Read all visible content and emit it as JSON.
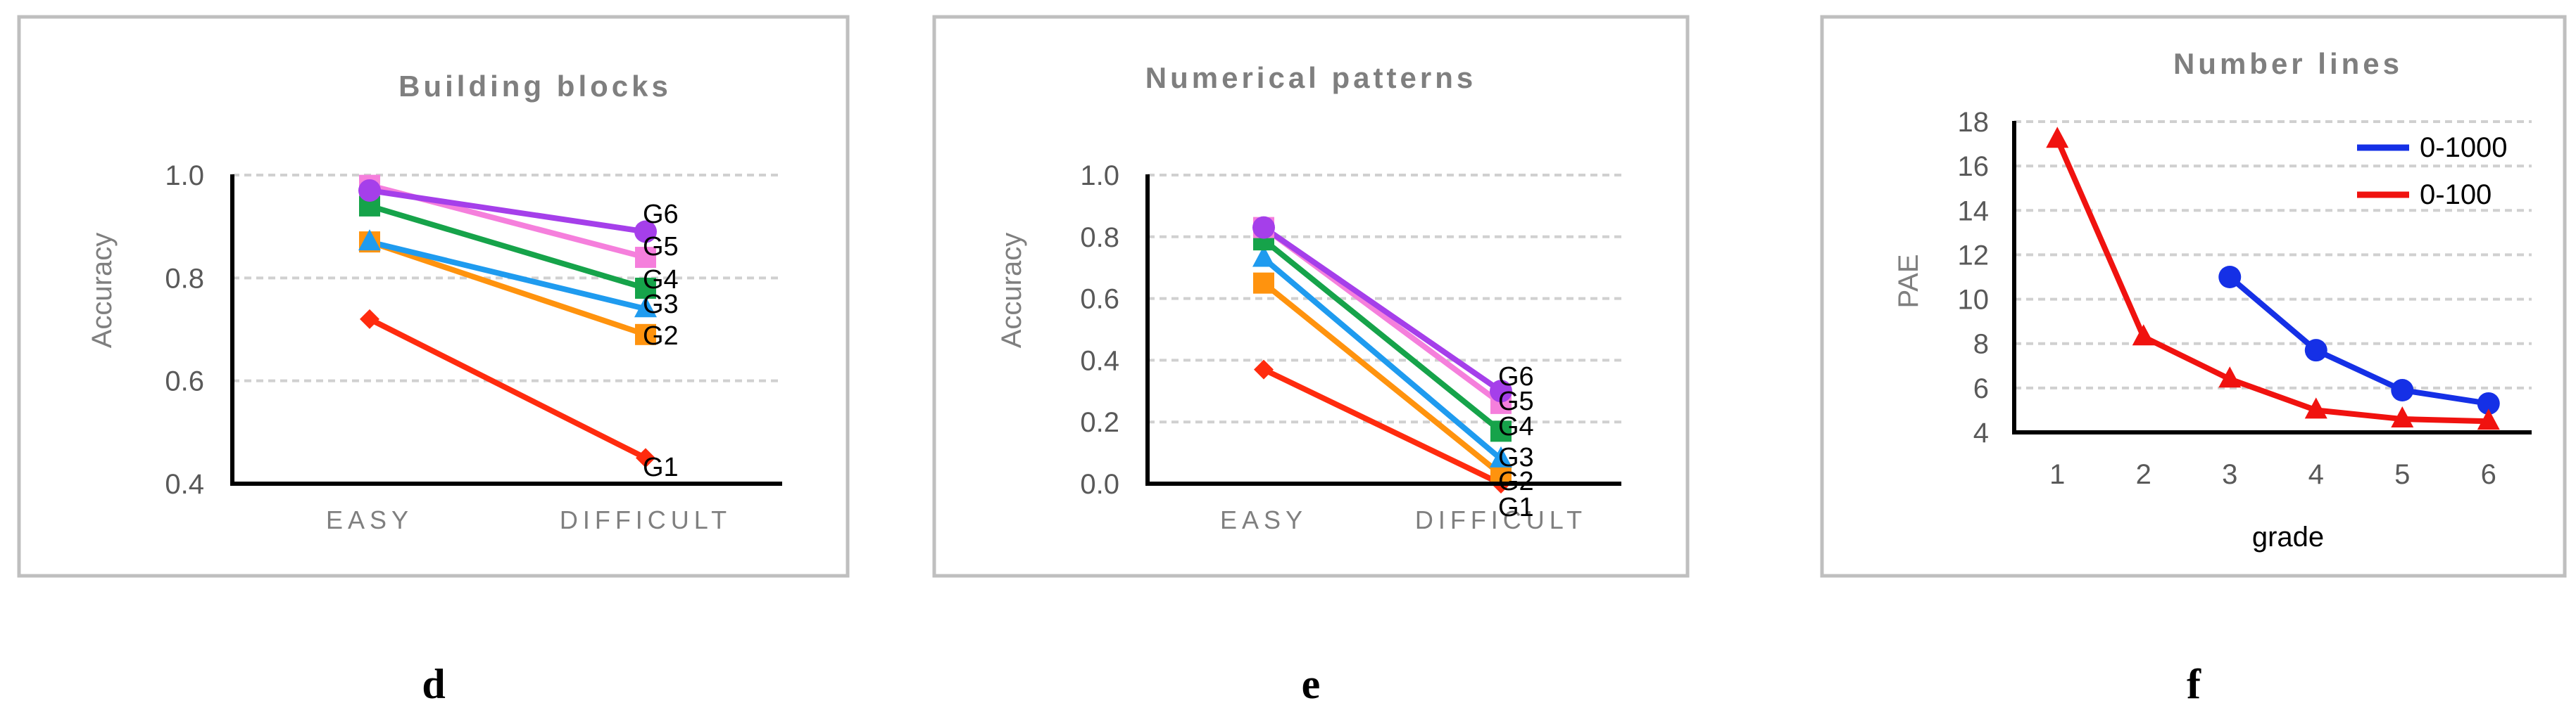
{
  "panels": [
    {
      "letter": "d",
      "chart_data": {
        "type": "line",
        "title": "Building blocks",
        "xlabel": "",
        "ylabel": "Accuracy",
        "categories": [
          "EASY",
          "DIFFICULT"
        ],
        "ylim": [
          0.4,
          1.0
        ],
        "yticks": [
          "0.4",
          "0.6",
          "0.8",
          "1.0"
        ],
        "grid": true,
        "series": [
          {
            "name": "G1",
            "values": [
              0.72,
              0.45
            ],
            "color": "#ff2b0e",
            "marker": "diamond"
          },
          {
            "name": "G2",
            "values": [
              0.87,
              0.69
            ],
            "color": "#ff930e",
            "marker": "square"
          },
          {
            "name": "G3",
            "values": [
              0.87,
              0.74
            ],
            "color": "#1f9bef",
            "marker": "triangle"
          },
          {
            "name": "G4",
            "values": [
              0.94,
              0.78
            ],
            "color": "#16a34a",
            "marker": "square"
          },
          {
            "name": "G5",
            "values": [
              0.98,
              0.84
            ],
            "color": "#f57fdc",
            "marker": "square"
          },
          {
            "name": "G6",
            "values": [
              0.97,
              0.89
            ],
            "color": "#a53fea",
            "marker": "circle"
          }
        ]
      }
    },
    {
      "letter": "e",
      "chart_data": {
        "type": "line",
        "title": "Numerical patterns",
        "xlabel": "",
        "ylabel": "Accuracy",
        "categories": [
          "EASY",
          "DIFFICULT"
        ],
        "ylim": [
          0.0,
          1.0
        ],
        "yticks": [
          "0.0",
          "0.2",
          "0.4",
          "0.6",
          "0.8",
          "1.0"
        ],
        "grid": true,
        "series": [
          {
            "name": "G1",
            "values": [
              0.37,
              0.0
            ],
            "color": "#ff2b0e",
            "marker": "diamond"
          },
          {
            "name": "G2",
            "values": [
              0.65,
              0.03
            ],
            "color": "#ff930e",
            "marker": "square"
          },
          {
            "name": "G3",
            "values": [
              0.73,
              0.08
            ],
            "color": "#1f9bef",
            "marker": "triangle"
          },
          {
            "name": "G4",
            "values": [
              0.79,
              0.17
            ],
            "color": "#16a34a",
            "marker": "square"
          },
          {
            "name": "G5",
            "values": [
              0.83,
              0.26
            ],
            "color": "#f57fdc",
            "marker": "square"
          },
          {
            "name": "G6",
            "values": [
              0.83,
              0.3
            ],
            "color": "#a53fea",
            "marker": "circle"
          }
        ]
      }
    },
    {
      "letter": "f",
      "chart_data": {
        "type": "line",
        "title": "Number lines",
        "xlabel": "grade",
        "ylabel": "PAE",
        "x": [
          1,
          2,
          3,
          4,
          5,
          6
        ],
        "ylim": [
          4,
          18
        ],
        "yticks": [
          "4",
          "6",
          "8",
          "10",
          "12",
          "14",
          "16",
          "18"
        ],
        "xticks": [
          "1",
          "2",
          "3",
          "4",
          "5",
          "6"
        ],
        "grid": true,
        "legend_position": "top-right",
        "series": [
          {
            "name": "0-1000",
            "x": [
              3,
              4,
              5,
              6
            ],
            "values": [
              11.0,
              7.7,
              5.9,
              5.3
            ],
            "color": "#1530e6",
            "marker": "circle"
          },
          {
            "name": "0-100",
            "x": [
              1,
              2,
              3,
              4,
              5,
              6
            ],
            "values": [
              17.2,
              8.3,
              6.4,
              5.0,
              4.6,
              4.5
            ],
            "color": "#f0120f",
            "marker": "triangle"
          }
        ]
      }
    }
  ]
}
